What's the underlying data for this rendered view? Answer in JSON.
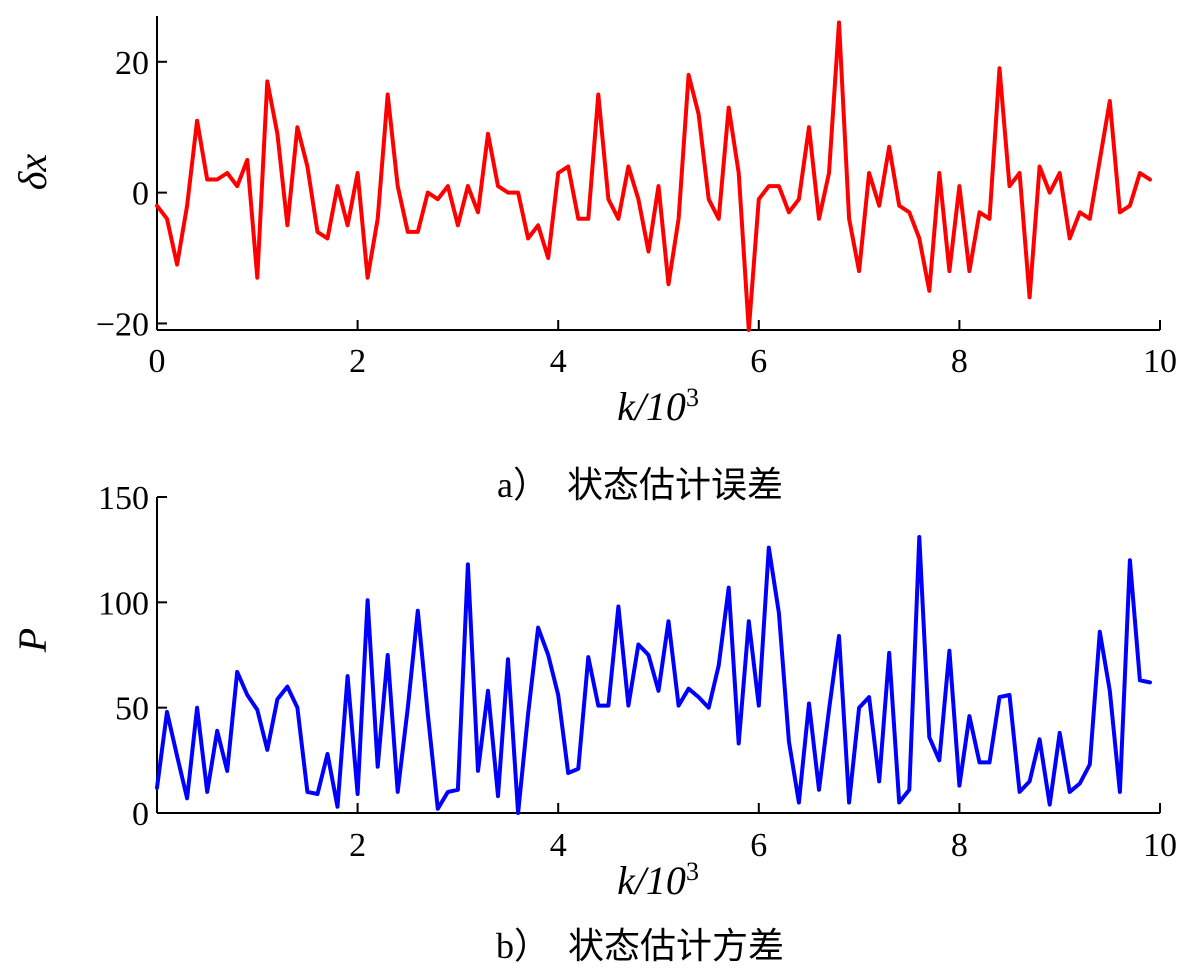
{
  "chart_data": [
    {
      "type": "line",
      "caption": "a）　状态估计误差",
      "xlabel": "k/10",
      "xlabel_exp": "3",
      "ylabel": "δx",
      "xlim": [
        0,
        10
      ],
      "ylim": [
        -21,
        27
      ],
      "xticks": [
        0,
        2,
        4,
        6,
        8,
        10
      ],
      "yticks": [
        -20,
        0,
        20
      ],
      "ytick_labels": [
        "−20",
        "0",
        "20"
      ],
      "color": "#ff0000",
      "series": [
        {
          "x": [
            0.0,
            0.1,
            0.2,
            0.3,
            0.4,
            0.5,
            0.6,
            0.7,
            0.8,
            0.9,
            1.0,
            1.1,
            1.2,
            1.3,
            1.4,
            1.5,
            1.6,
            1.7,
            1.8,
            1.9,
            2.0,
            2.1,
            2.2,
            2.3,
            2.4,
            2.5,
            2.6,
            2.7,
            2.8,
            2.9,
            3.0,
            3.1,
            3.2,
            3.3,
            3.4,
            3.5,
            3.6,
            3.7,
            3.8,
            3.9,
            4.0,
            4.1,
            4.2,
            4.3,
            4.4,
            4.5,
            4.6,
            4.7,
            4.8,
            4.9,
            5.0,
            5.1,
            5.2,
            5.3,
            5.4,
            5.5,
            5.6,
            5.7,
            5.8,
            5.9,
            6.0,
            6.1,
            6.2,
            6.3,
            6.4,
            6.5,
            6.6,
            6.7,
            6.8,
            6.9,
            7.0,
            7.1,
            7.2,
            7.3,
            7.4,
            7.5,
            7.6,
            7.7,
            7.8,
            7.9,
            8.0,
            8.1,
            8.2,
            8.3,
            8.4,
            8.5,
            8.6,
            8.7,
            8.8,
            8.9,
            9.0,
            9.1,
            9.2,
            9.3,
            9.4,
            9.5,
            9.6,
            9.7,
            9.8,
            9.9
          ],
          "y": [
            -2,
            -4,
            -11,
            -2,
            11,
            2,
            2,
            3,
            1,
            5,
            -13,
            17,
            9,
            -5,
            10,
            4,
            -6,
            -7,
            1,
            -5,
            3,
            -13,
            -4,
            15,
            1,
            -6,
            -6,
            0,
            -1,
            1,
            -5,
            1,
            -3,
            9,
            1,
            0,
            0,
            -7,
            -5,
            -10,
            3,
            4,
            -4,
            -4,
            15,
            -1,
            -4,
            4,
            -1,
            -9,
            1,
            -14,
            -4,
            18,
            12,
            -1,
            -4,
            13,
            3,
            -21,
            -1,
            1,
            1,
            -3,
            -1,
            10,
            -4,
            3,
            26,
            -4,
            -12,
            3,
            -2,
            7,
            -2,
            -3,
            -7,
            -15,
            3,
            -12,
            1,
            -12,
            -3,
            -4,
            19,
            1,
            3,
            -16,
            4,
            0,
            3,
            -7,
            -3,
            -4,
            5,
            14,
            -3,
            -2,
            3,
            2
          ]
        }
      ]
    },
    {
      "type": "line",
      "caption": "b）　状态估计方差",
      "xlabel": "k/10",
      "xlabel_exp": "3",
      "ylabel": "P",
      "xlim": [
        0,
        10
      ],
      "ylim": [
        0,
        150
      ],
      "xticks": [
        2,
        4,
        6,
        8,
        10
      ],
      "yticks": [
        0,
        50,
        100,
        150
      ],
      "ytick_labels": [
        "0",
        "50",
        "100",
        "150"
      ],
      "color": "#0000ff",
      "series": [
        {
          "x": [
            0.0,
            0.1,
            0.2,
            0.3,
            0.4,
            0.5,
            0.6,
            0.7,
            0.8,
            0.9,
            1.0,
            1.1,
            1.2,
            1.3,
            1.4,
            1.5,
            1.6,
            1.7,
            1.8,
            1.9,
            2.0,
            2.1,
            2.2,
            2.3,
            2.4,
            2.5,
            2.6,
            2.7,
            2.8,
            2.9,
            3.0,
            3.1,
            3.2,
            3.3,
            3.4,
            3.5,
            3.6,
            3.7,
            3.8,
            3.9,
            4.0,
            4.1,
            4.2,
            4.3,
            4.4,
            4.5,
            4.6,
            4.7,
            4.8,
            4.9,
            5.0,
            5.1,
            5.2,
            5.3,
            5.4,
            5.5,
            5.6,
            5.7,
            5.8,
            5.9,
            6.0,
            6.1,
            6.2,
            6.3,
            6.4,
            6.5,
            6.6,
            6.7,
            6.8,
            6.9,
            7.0,
            7.1,
            7.2,
            7.3,
            7.4,
            7.5,
            7.6,
            7.7,
            7.8,
            7.9,
            8.0,
            8.1,
            8.2,
            8.3,
            8.4,
            8.5,
            8.6,
            8.7,
            8.8,
            8.9,
            9.0,
            9.1,
            9.2,
            9.3,
            9.4,
            9.5,
            9.6,
            9.7,
            9.8,
            9.9
          ],
          "y": [
            12,
            48,
            27,
            7,
            50,
            10,
            39,
            20,
            67,
            56,
            49,
            30,
            54,
            60,
            50,
            10,
            9,
            28,
            3,
            65,
            9,
            101,
            22,
            75,
            10,
            50,
            96,
            47,
            2,
            10,
            11,
            118,
            20,
            58,
            8,
            73,
            0,
            47,
            88,
            75,
            56,
            19,
            21,
            74,
            51,
            51,
            98,
            51,
            80,
            75,
            58,
            91,
            51,
            59,
            55,
            50,
            70,
            107,
            33,
            91,
            51,
            126,
            95,
            34,
            5,
            52,
            11,
            49,
            84,
            5,
            50,
            55,
            15,
            76,
            5,
            11,
            131,
            36,
            25,
            77,
            13,
            46,
            24,
            24,
            55,
            56,
            10,
            15,
            35,
            4,
            38,
            10,
            14,
            23,
            86,
            58,
            10,
            120,
            63,
            62
          ]
        }
      ]
    }
  ]
}
